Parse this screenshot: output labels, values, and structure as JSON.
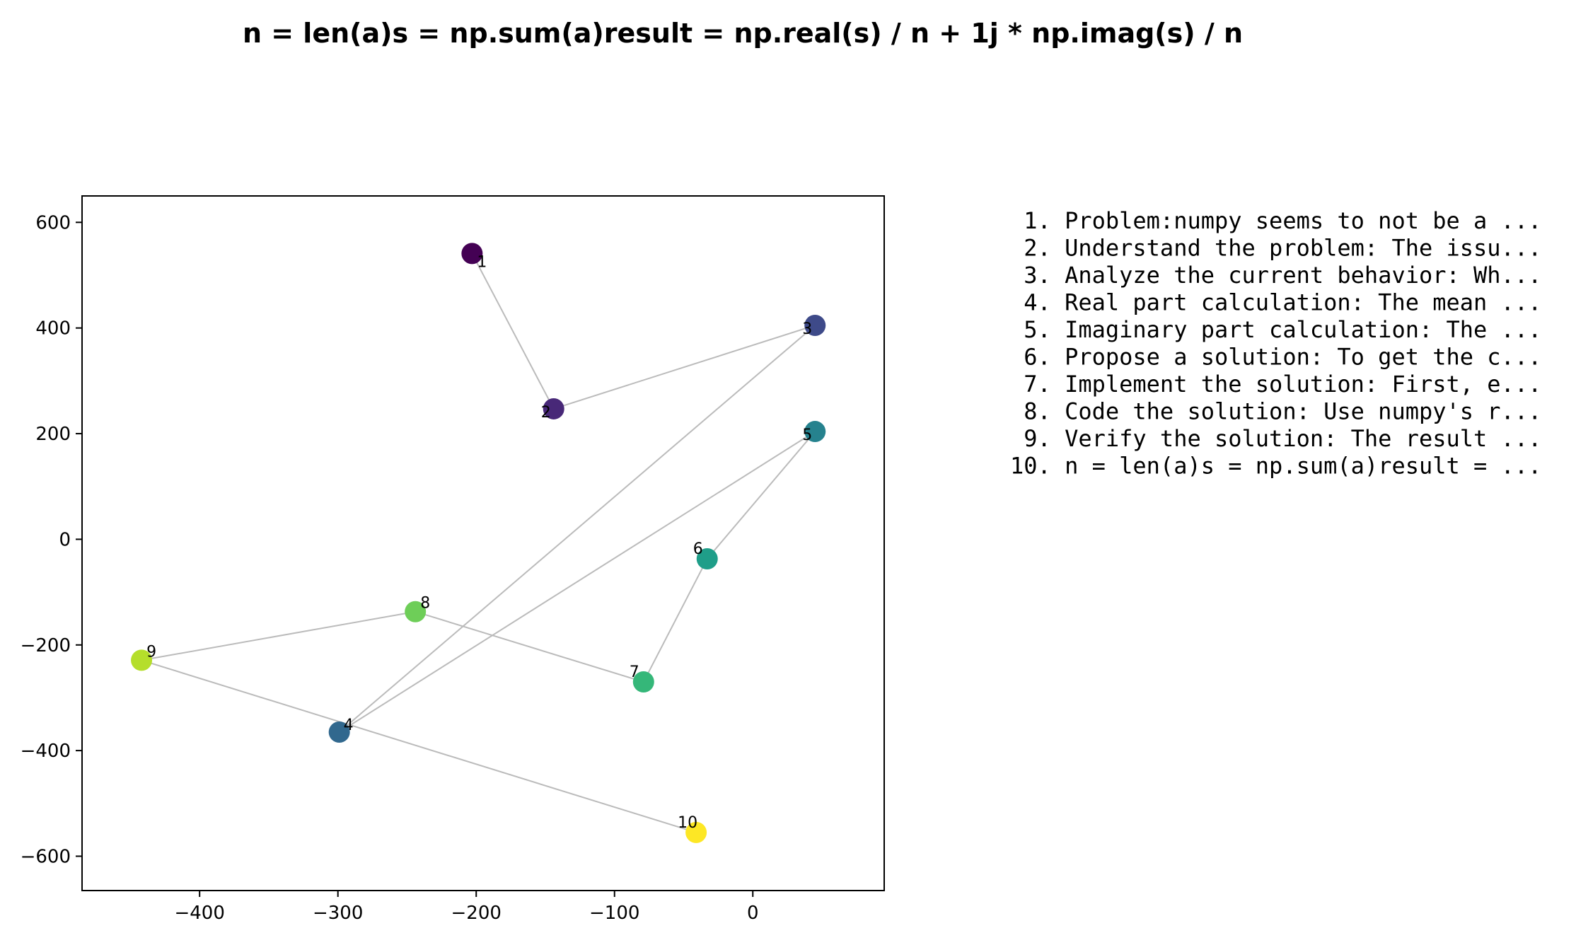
{
  "chart_data": {
    "type": "scatter",
    "title": "n = len(a)s = np.sum(a)result = np.real(s) / n + 1j * np.imag(s) / n",
    "xlim": [
      -485,
      95
    ],
    "ylim": [
      -665,
      650
    ],
    "xticks": [
      -400,
      -300,
      -200,
      -100,
      0
    ],
    "yticks": [
      600,
      400,
      200,
      0,
      -200,
      -400,
      -600
    ],
    "xtick_labels": [
      "−400",
      "−300",
      "−200",
      "−100",
      "0"
    ],
    "ytick_labels": [
      "600",
      "400",
      "200",
      "0",
      "−200",
      "−400",
      "−600"
    ],
    "grid": false,
    "connect_points": true,
    "colormap": "viridis",
    "line_color": "#bbbbbb",
    "points": [
      {
        "label": "1",
        "x": -203,
        "y": 541,
        "color": "#440154"
      },
      {
        "label": "2",
        "x": -144,
        "y": 247,
        "color": "#482878"
      },
      {
        "label": "3",
        "x": 45,
        "y": 405,
        "color": "#3e4a89"
      },
      {
        "label": "4",
        "x": -299,
        "y": -365,
        "color": "#31688e"
      },
      {
        "label": "5",
        "x": 45,
        "y": 204,
        "color": "#26828e"
      },
      {
        "label": "6",
        "x": -33,
        "y": -37,
        "color": "#1f9e89"
      },
      {
        "label": "7",
        "x": -79,
        "y": -270,
        "color": "#35b779"
      },
      {
        "label": "8",
        "x": -244,
        "y": -137,
        "color": "#6ece58"
      },
      {
        "label": "9",
        "x": -442,
        "y": -229,
        "color": "#b5de2b"
      },
      {
        "label": "10",
        "x": -41,
        "y": -555,
        "color": "#fde725"
      }
    ],
    "legend": [
      " 1. Problem:numpy seems to not be a ...",
      " 2. Understand the problem: The issu...",
      " 3. Analyze the current behavior: Wh...",
      " 4. Real part calculation: The mean ...",
      " 5. Imaginary part calculation: The ...",
      " 6. Propose a solution: To get the c...",
      " 7. Implement the solution: First, e...",
      " 8. Code the solution: Use numpy's r...",
      " 9. Verify the solution: The result ...",
      "10. n = len(a)s = np.sum(a)result = ..."
    ]
  }
}
